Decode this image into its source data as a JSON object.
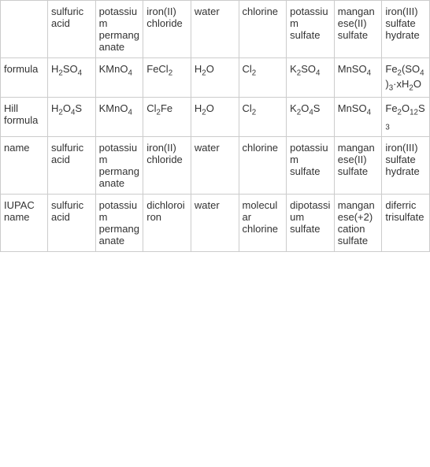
{
  "table": {
    "columns": [
      "",
      "sulfuric acid",
      "potassium permanganate",
      "iron(II) chloride",
      "water",
      "chlorine",
      "potassium sulfate",
      "manganese(II) sulfate",
      "iron(III) sulfate hydrate"
    ],
    "rows": [
      {
        "label": "formula",
        "cells": [
          {
            "type": "formula",
            "parts": [
              {
                "t": "H"
              },
              {
                "s": "2"
              },
              {
                "t": "SO"
              },
              {
                "s": "4"
              }
            ]
          },
          {
            "type": "formula",
            "parts": [
              {
                "t": "KMnO"
              },
              {
                "s": "4"
              }
            ]
          },
          {
            "type": "formula",
            "parts": [
              {
                "t": "FeCl"
              },
              {
                "s": "2"
              }
            ]
          },
          {
            "type": "formula",
            "parts": [
              {
                "t": "H"
              },
              {
                "s": "2"
              },
              {
                "t": "O"
              }
            ]
          },
          {
            "type": "formula",
            "parts": [
              {
                "t": "Cl"
              },
              {
                "s": "2"
              }
            ]
          },
          {
            "type": "formula",
            "parts": [
              {
                "t": "K"
              },
              {
                "s": "2"
              },
              {
                "t": "SO"
              },
              {
                "s": "4"
              }
            ]
          },
          {
            "type": "formula",
            "parts": [
              {
                "t": "MnSO"
              },
              {
                "s": "4"
              }
            ]
          },
          {
            "type": "formula",
            "parts": [
              {
                "t": "Fe"
              },
              {
                "s": "2"
              },
              {
                "t": "(SO"
              },
              {
                "s": "4"
              },
              {
                "t": ")"
              },
              {
                "s": "3"
              },
              {
                "t": "·xH"
              },
              {
                "s": "2"
              },
              {
                "t": "O"
              }
            ]
          }
        ]
      },
      {
        "label": "Hill formula",
        "cells": [
          {
            "type": "formula",
            "parts": [
              {
                "t": "H"
              },
              {
                "s": "2"
              },
              {
                "t": "O"
              },
              {
                "s": "4"
              },
              {
                "t": "S"
              }
            ]
          },
          {
            "type": "formula",
            "parts": [
              {
                "t": "KMnO"
              },
              {
                "s": "4"
              }
            ]
          },
          {
            "type": "formula",
            "parts": [
              {
                "t": "Cl"
              },
              {
                "s": "2"
              },
              {
                "t": "Fe"
              }
            ]
          },
          {
            "type": "formula",
            "parts": [
              {
                "t": "H"
              },
              {
                "s": "2"
              },
              {
                "t": "O"
              }
            ]
          },
          {
            "type": "formula",
            "parts": [
              {
                "t": "Cl"
              },
              {
                "s": "2"
              }
            ]
          },
          {
            "type": "formula",
            "parts": [
              {
                "t": "K"
              },
              {
                "s": "2"
              },
              {
                "t": "O"
              },
              {
                "s": "4"
              },
              {
                "t": "S"
              }
            ]
          },
          {
            "type": "formula",
            "parts": [
              {
                "t": "MnSO"
              },
              {
                "s": "4"
              }
            ]
          },
          {
            "type": "formula",
            "parts": [
              {
                "t": "Fe"
              },
              {
                "s": "2"
              },
              {
                "t": "O"
              },
              {
                "s": "12"
              },
              {
                "t": "S"
              },
              {
                "s": "3"
              }
            ]
          }
        ]
      },
      {
        "label": "name",
        "cells": [
          {
            "type": "text",
            "value": "sulfuric acid"
          },
          {
            "type": "text",
            "value": "potassium permanganate"
          },
          {
            "type": "text",
            "value": "iron(II) chloride"
          },
          {
            "type": "text",
            "value": "water"
          },
          {
            "type": "text",
            "value": "chlorine"
          },
          {
            "type": "text",
            "value": "potassium sulfate"
          },
          {
            "type": "text",
            "value": "manganese(II) sulfate"
          },
          {
            "type": "text",
            "value": "iron(III) sulfate hydrate"
          }
        ]
      },
      {
        "label": "IUPAC name",
        "cells": [
          {
            "type": "text",
            "value": "sulfuric acid"
          },
          {
            "type": "text",
            "value": "potassium permanganate"
          },
          {
            "type": "text",
            "value": "dichloroiron"
          },
          {
            "type": "text",
            "value": "water"
          },
          {
            "type": "text",
            "value": "molecular chlorine"
          },
          {
            "type": "text",
            "value": "dipotassium sulfate"
          },
          {
            "type": "text",
            "value": "manganese(+2) cation sulfate"
          },
          {
            "type": "text",
            "value": "diferric trisulfate"
          }
        ]
      }
    ]
  }
}
